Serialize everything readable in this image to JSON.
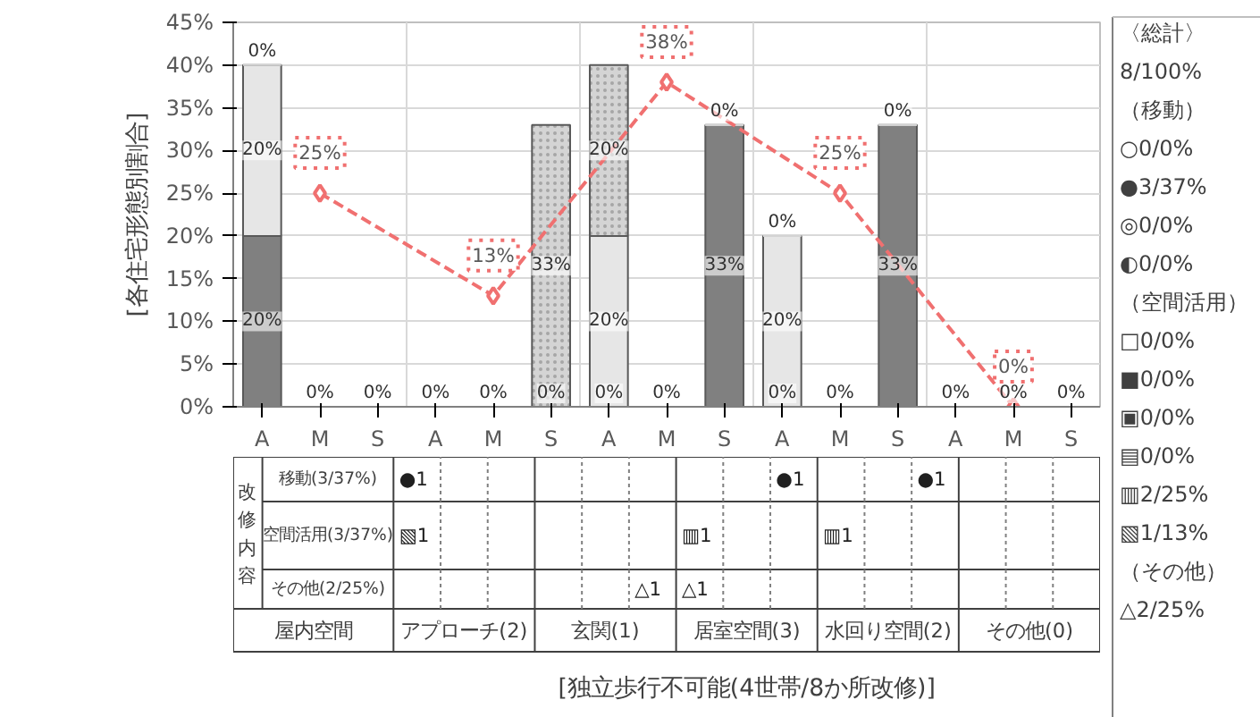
{
  "chart_data": {
    "type": "bar",
    "stacked": true,
    "ylabel": "[各住宅形態別割合]",
    "categories": [
      "A",
      "M",
      "S",
      "A",
      "M",
      "S",
      "A",
      "M",
      "S",
      "A",
      "M",
      "S",
      "A",
      "M",
      "S"
    ],
    "ylim": [
      0,
      45
    ],
    "yticks": [
      {
        "value": 0,
        "label": "0%"
      },
      {
        "value": 5,
        "label": "5%"
      },
      {
        "value": 10,
        "label": "10%"
      },
      {
        "value": 15,
        "label": "15%"
      },
      {
        "value": 20,
        "label": "20%"
      },
      {
        "value": 25,
        "label": "25%"
      },
      {
        "value": 30,
        "label": "30%"
      },
      {
        "value": 35,
        "label": "35%"
      },
      {
        "value": 40,
        "label": "40%"
      },
      {
        "value": 45,
        "label": "45%"
      }
    ],
    "grid": true,
    "series": [
      {
        "color": "#808080",
        "values": [
          20,
          0,
          0,
          0,
          0,
          0,
          0,
          0,
          33,
          0,
          0,
          33,
          0,
          0,
          0
        ],
        "value_labels": [
          "20%",
          null,
          null,
          null,
          null,
          "0%",
          "0%",
          null,
          "33%",
          "0%",
          null,
          "33%",
          null,
          null,
          null
        ]
      },
      {
        "color": "#e6e6e6",
        "values": [
          20,
          0,
          0,
          0,
          0,
          0,
          20,
          0,
          0,
          20,
          0,
          0,
          0,
          0,
          0
        ],
        "value_labels": [
          "20%",
          null,
          null,
          null,
          null,
          null,
          "20%",
          null,
          null,
          "20%",
          null,
          null,
          null,
          null,
          null
        ]
      },
      {
        "color": "#d4d4d4",
        "values": [
          0,
          0,
          0,
          0,
          0,
          33,
          20,
          0,
          0,
          0,
          0,
          0,
          0,
          0,
          0
        ],
        "value_labels": [
          "0%",
          "0%",
          "0%",
          "0%",
          "0%",
          "33%",
          "20%",
          "0%",
          "0%",
          "0%",
          "0%",
          "0%",
          "0%",
          "0%",
          "0%"
        ]
      },
      {
        "type": "line",
        "color": "#f07070",
        "line_style": "dashed",
        "marker": "diamond",
        "values": [
          null,
          25,
          null,
          null,
          13,
          null,
          null,
          38,
          null,
          null,
          25,
          null,
          null,
          0,
          null
        ],
        "value_labels": [
          null,
          "25%",
          null,
          null,
          "13%",
          null,
          null,
          "38%",
          null,
          null,
          "25%",
          null,
          null,
          "0%",
          null
        ]
      }
    ],
    "annotations": [
      "〈総計〉",
      "8/100%",
      "（移動）",
      "○0/0%",
      "●3/37%",
      "◎0/0%",
      "◐0/0%",
      "（空間活用）",
      "□0/0%",
      "■0/0%",
      "▣0/0%",
      "▤0/0%",
      "▥2/25%",
      "▧1/13%",
      "（その他）",
      "△2/25%",
      "改修内容",
      "移動(3/37%)",
      "空間活用(3/37%)",
      "その他(2/25%)",
      "屋内空間",
      "アプローチ(2)",
      "玄関(1)",
      "居室空間(3)",
      "水回り空間(2)",
      "その他(0)",
      "●1",
      "▧1",
      "△1",
      "▥1",
      "△1",
      "●1",
      "▥1",
      "●1",
      "[独立歩行不可能(4世帯/8か所改修)]"
    ]
  }
}
